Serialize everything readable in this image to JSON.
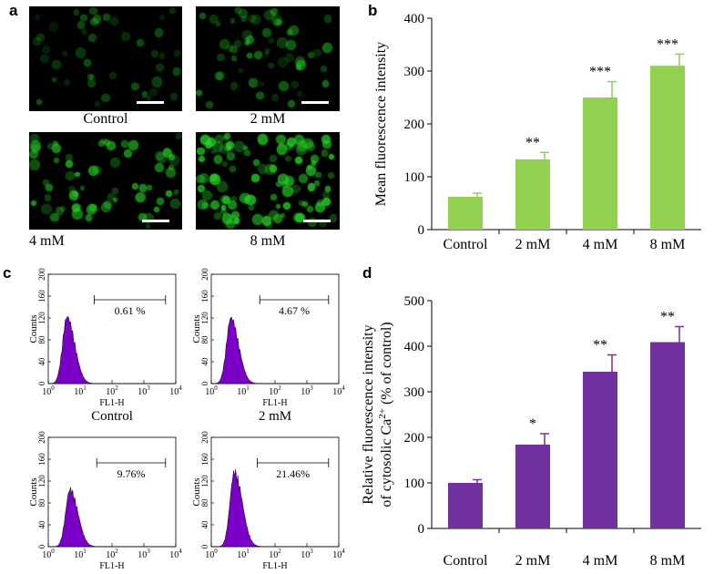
{
  "panel_labels": {
    "a": "a",
    "b": "b",
    "c": "c",
    "d": "d"
  },
  "images": {
    "control": "Control",
    "mm2": "2 mM",
    "mm4": "4 mM",
    "mm8": "8 mM"
  },
  "histograms": [
    {
      "caption": "Control",
      "gate_value": "0.61 %"
    },
    {
      "caption": "2 mM",
      "gate_value": "4.67 %"
    },
    {
      "caption": "4 mM",
      "gate_value": "9.76%"
    },
    {
      "caption": "8 mM",
      "gate_value": "21.46%"
    }
  ],
  "histogram_axes": {
    "xlabel": "FL1-H",
    "ylabel": "Counts",
    "x_ticks": [
      "10",
      "10",
      "10",
      "10",
      "10"
    ],
    "x_tick_exponents": [
      "0",
      "1",
      "2",
      "3",
      "4"
    ],
    "y_ticks": [
      "0",
      "40",
      "80",
      "120",
      "160",
      "200"
    ]
  },
  "colors": {
    "green_bar": "#92d050",
    "purple_bar": "#7030a0",
    "histogram_fill": "#7a00c8",
    "cell_green": "#2fe02f"
  },
  "chart_data": [
    {
      "panel": "b",
      "type": "bar",
      "categories": [
        "Control",
        "2 mM",
        "4 mM",
        "8 mM"
      ],
      "values": [
        62,
        133,
        250,
        310
      ],
      "errors": [
        7,
        13,
        30,
        22
      ],
      "significance": [
        "",
        "**",
        "***",
        "***"
      ],
      "ylabel": "Mean fluorescence intensity",
      "ylim": [
        0,
        400
      ],
      "yticks": [
        0,
        100,
        200,
        300,
        400
      ],
      "grid": false
    },
    {
      "panel": "d",
      "type": "bar",
      "categories": [
        "Control",
        "2 mM",
        "4 mM",
        "8 mM"
      ],
      "values": [
        100,
        184,
        344,
        409
      ],
      "errors": [
        7,
        24,
        37,
        34
      ],
      "significance": [
        "",
        "*",
        "**",
        "**"
      ],
      "ylabel_line1": "Relative fluorescence intensity",
      "ylabel_line2_prefix": "of cytosolic Ca",
      "ylabel_line2_sup": "2+",
      "ylabel_line2_suffix": " (% of control)",
      "ylim": [
        0,
        500
      ],
      "yticks": [
        0,
        100,
        200,
        300,
        400,
        500
      ],
      "grid": false
    }
  ]
}
